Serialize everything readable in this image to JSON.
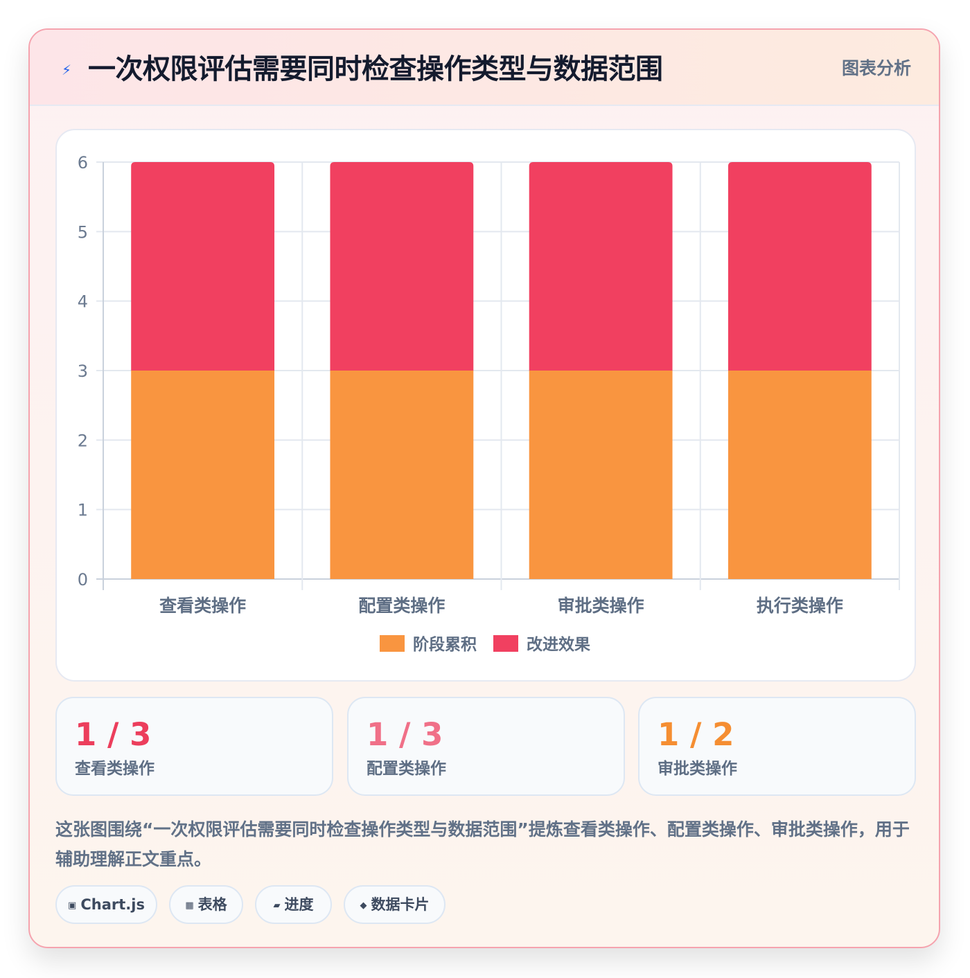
{
  "header": {
    "icon": "lightning-icon",
    "icon_glyph": "⚡",
    "title": "一次权限评估需要同时检查操作类型与数据范围",
    "tag": "图表分析"
  },
  "chart_data": {
    "type": "bar",
    "stacked": true,
    "categories": [
      "查看类操作",
      "配置类操作",
      "审批类操作",
      "执行类操作"
    ],
    "series": [
      {
        "name": "阶段累积",
        "values": [
          3,
          3,
          3,
          3
        ],
        "color": "#f99540"
      },
      {
        "name": "改进效果",
        "values": [
          3,
          3,
          3,
          3
        ],
        "color": "#f14060"
      }
    ],
    "ylim": [
      0,
      6
    ],
    "yticks": [
      0,
      1,
      2,
      3,
      4,
      5,
      6
    ],
    "grid": true,
    "legend": "bottom"
  },
  "stats": [
    {
      "value": "1 / 3",
      "label": "查看类操作",
      "color": "#ec3e5c"
    },
    {
      "value": "1 / 3",
      "label": "配置类操作",
      "color": "#f07088"
    },
    {
      "value": "1 / 2",
      "label": "审批类操作",
      "color": "#f58e32"
    }
  ],
  "description": "这张图围绕“一次权限评估需要同时检查操作类型与数据范围”提炼查看类操作、配置类操作、审批类操作，用于辅助理解正文重点。",
  "chips": [
    {
      "icon": "chart-icon",
      "glyph": "▣",
      "label": "Chart.js"
    },
    {
      "icon": "table-icon",
      "glyph": "▦",
      "label": "表格"
    },
    {
      "icon": "progress-icon",
      "glyph": "▰",
      "label": "进度"
    },
    {
      "icon": "data-card-icon",
      "glyph": "◆",
      "label": "数据卡片"
    }
  ]
}
